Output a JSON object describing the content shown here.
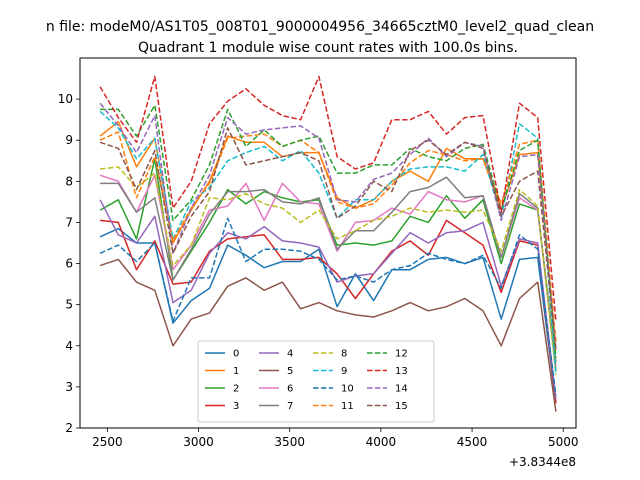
{
  "chart_data": {
    "type": "line",
    "suptitle": "n file: modeM0/AS1T05_008T01_9000004956_34665cztM0_level2_quad_clean",
    "title": "Quadrant 1 module wise count rates with 100.0s bins.",
    "xlabel": "",
    "ylabel": "",
    "x_offset_label": "+3.8344e8",
    "xlim": [
      2350,
      5070
    ],
    "ylim": [
      2,
      11
    ],
    "x_ticks": [
      2500,
      3000,
      3500,
      4000,
      4500,
      5000
    ],
    "y_ticks": [
      2,
      3,
      4,
      5,
      6,
      7,
      8,
      9,
      10
    ],
    "grid": false,
    "legend_position": "lower-center",
    "x": [
      2460,
      2560,
      2660,
      2760,
      2860,
      2960,
      3060,
      3160,
      3260,
      3360,
      3460,
      3560,
      3660,
      3760,
      3860,
      3960,
      4060,
      4160,
      4260,
      4360,
      4460,
      4560,
      4660,
      4760,
      4860,
      4960
    ],
    "series": [
      {
        "name": "0",
        "color": "#1f77b4",
        "dash": "solid",
        "values": [
          6.65,
          6.85,
          6.5,
          6.5,
          4.55,
          5.1,
          5.4,
          6.45,
          6.2,
          5.9,
          6.05,
          6.05,
          6.35,
          4.95,
          5.75,
          5.1,
          5.85,
          5.85,
          6.1,
          6.15,
          6.0,
          6.15,
          4.65,
          6.1,
          6.15,
          2.6
        ]
      },
      {
        "name": "1",
        "color": "#ff7f0e",
        "dash": "solid",
        "values": [
          9.1,
          9.45,
          8.35,
          9.05,
          6.5,
          7.3,
          8.0,
          9.1,
          8.95,
          8.95,
          8.6,
          8.7,
          8.7,
          7.6,
          7.35,
          7.55,
          8.0,
          8.25,
          8.0,
          8.8,
          8.55,
          8.55,
          7.3,
          8.65,
          8.7,
          3.9
        ]
      },
      {
        "name": "2",
        "color": "#2ca02c",
        "dash": "solid",
        "values": [
          7.3,
          7.55,
          6.6,
          8.55,
          5.6,
          6.3,
          7.0,
          7.8,
          7.45,
          7.75,
          7.6,
          7.5,
          7.55,
          6.45,
          6.5,
          6.45,
          6.55,
          7.15,
          7.0,
          7.65,
          7.1,
          7.55,
          6.0,
          7.45,
          7.3,
          3.6
        ]
      },
      {
        "name": "3",
        "color": "#d62728",
        "dash": "solid",
        "values": [
          7.05,
          7.0,
          5.85,
          6.55,
          5.5,
          5.55,
          6.3,
          6.6,
          6.65,
          6.7,
          6.1,
          6.1,
          6.15,
          5.75,
          5.15,
          5.75,
          6.3,
          6.55,
          6.2,
          7.05,
          6.75,
          6.45,
          5.3,
          6.55,
          6.45,
          2.6
        ]
      },
      {
        "name": "4",
        "color": "#9467bd",
        "dash": "solid",
        "values": [
          7.55,
          6.7,
          6.5,
          7.15,
          5.05,
          5.35,
          6.25,
          6.75,
          6.6,
          6.9,
          6.55,
          6.5,
          6.4,
          5.55,
          5.7,
          5.75,
          6.25,
          6.75,
          6.5,
          6.75,
          6.8,
          7.0,
          5.45,
          6.6,
          6.5,
          2.7
        ]
      },
      {
        "name": "5",
        "color": "#8c564b",
        "dash": "solid",
        "values": [
          5.95,
          6.1,
          5.55,
          5.35,
          4.0,
          4.65,
          4.8,
          5.45,
          5.65,
          5.35,
          5.55,
          4.9,
          5.05,
          4.85,
          4.75,
          4.7,
          4.85,
          5.05,
          4.85,
          4.95,
          5.15,
          4.85,
          4.0,
          5.15,
          5.55,
          2.4
        ]
      },
      {
        "name": "6",
        "color": "#e377c2",
        "dash": "solid",
        "values": [
          8.15,
          8.0,
          7.25,
          8.15,
          5.85,
          6.45,
          7.3,
          7.4,
          7.95,
          7.05,
          7.95,
          7.5,
          7.45,
          6.3,
          7.0,
          7.05,
          7.35,
          7.2,
          7.75,
          7.55,
          7.5,
          7.65,
          6.15,
          7.6,
          7.3,
          3.5
        ]
      },
      {
        "name": "7",
        "color": "#7f7f7f",
        "dash": "solid",
        "values": [
          7.95,
          7.95,
          7.25,
          7.6,
          5.6,
          6.35,
          7.2,
          7.75,
          7.75,
          7.8,
          7.5,
          7.45,
          7.6,
          6.35,
          6.8,
          6.8,
          7.25,
          7.75,
          7.85,
          8.1,
          7.6,
          7.65,
          6.15,
          7.7,
          7.35,
          3.4
        ]
      },
      {
        "name": "8",
        "color": "#bcbd22",
        "dash": "dashed",
        "values": [
          8.3,
          8.35,
          7.85,
          8.2,
          5.95,
          6.45,
          7.6,
          7.55,
          7.7,
          7.45,
          7.35,
          7.0,
          7.3,
          6.6,
          6.8,
          7.05,
          7.15,
          7.35,
          7.25,
          7.3,
          7.25,
          7.3,
          6.3,
          7.8,
          7.4,
          3.3
        ]
      },
      {
        "name": "9",
        "color": "#17becf",
        "dash": "dashed",
        "values": [
          9.7,
          9.3,
          8.55,
          9.05,
          6.6,
          7.5,
          7.85,
          8.5,
          8.7,
          8.85,
          8.5,
          8.75,
          8.2,
          7.1,
          7.55,
          7.55,
          8.0,
          8.3,
          8.35,
          8.35,
          8.25,
          8.65,
          7.1,
          9.4,
          9.05,
          3.3
        ]
      },
      {
        "name": "10",
        "color": "#1f77b4",
        "dash": "dashed",
        "values": [
          6.25,
          6.45,
          6.05,
          6.5,
          4.6,
          5.65,
          5.65,
          7.1,
          6.05,
          6.35,
          6.35,
          6.3,
          6.1,
          5.6,
          5.7,
          5.55,
          5.85,
          5.95,
          6.25,
          6.1,
          6.0,
          6.2,
          5.4,
          6.7,
          6.35,
          2.8
        ]
      },
      {
        "name": "11",
        "color": "#ff7f0e",
        "dash": "dashed",
        "values": [
          9.0,
          9.2,
          7.6,
          8.6,
          6.55,
          7.35,
          7.95,
          9.05,
          9.1,
          9.15,
          8.85,
          9.0,
          8.7,
          7.5,
          7.35,
          7.45,
          7.9,
          8.45,
          8.75,
          8.65,
          8.5,
          8.55,
          7.45,
          8.9,
          9.0,
          4.1
        ]
      },
      {
        "name": "12",
        "color": "#2ca02c",
        "dash": "dashed",
        "values": [
          9.75,
          9.75,
          9.1,
          9.85,
          7.05,
          7.55,
          8.4,
          9.75,
          8.85,
          9.25,
          8.85,
          9.0,
          9.1,
          8.2,
          8.2,
          8.4,
          8.4,
          8.8,
          8.6,
          8.5,
          8.8,
          8.9,
          7.3,
          8.75,
          9.0,
          3.7
        ]
      },
      {
        "name": "13",
        "color": "#d62728",
        "dash": "dashed",
        "values": [
          10.3,
          9.55,
          8.95,
          10.55,
          7.35,
          8.0,
          9.4,
          9.95,
          10.25,
          9.85,
          9.6,
          9.5,
          10.55,
          8.6,
          8.3,
          8.45,
          9.5,
          9.5,
          9.7,
          9.15,
          9.55,
          9.6,
          7.25,
          9.9,
          9.55,
          4.6
        ]
      },
      {
        "name": "14",
        "color": "#9467bd",
        "dash": "dashed",
        "values": [
          9.9,
          9.35,
          8.7,
          9.6,
          6.25,
          7.35,
          8.15,
          9.55,
          9.15,
          9.25,
          9.3,
          9.35,
          9.05,
          7.55,
          7.5,
          8.05,
          8.2,
          8.65,
          9.05,
          8.6,
          8.95,
          8.85,
          7.05,
          8.6,
          8.65,
          3.9
        ]
      },
      {
        "name": "15",
        "color": "#8c564b",
        "dash": "dashed",
        "values": [
          8.95,
          8.8,
          7.8,
          8.75,
          6.25,
          7.15,
          7.75,
          9.3,
          8.4,
          8.5,
          8.6,
          8.7,
          8.5,
          7.1,
          7.4,
          8.0,
          7.75,
          8.75,
          9.0,
          8.65,
          8.95,
          8.8,
          7.15,
          8.0,
          8.25,
          3.9
        ]
      }
    ]
  }
}
